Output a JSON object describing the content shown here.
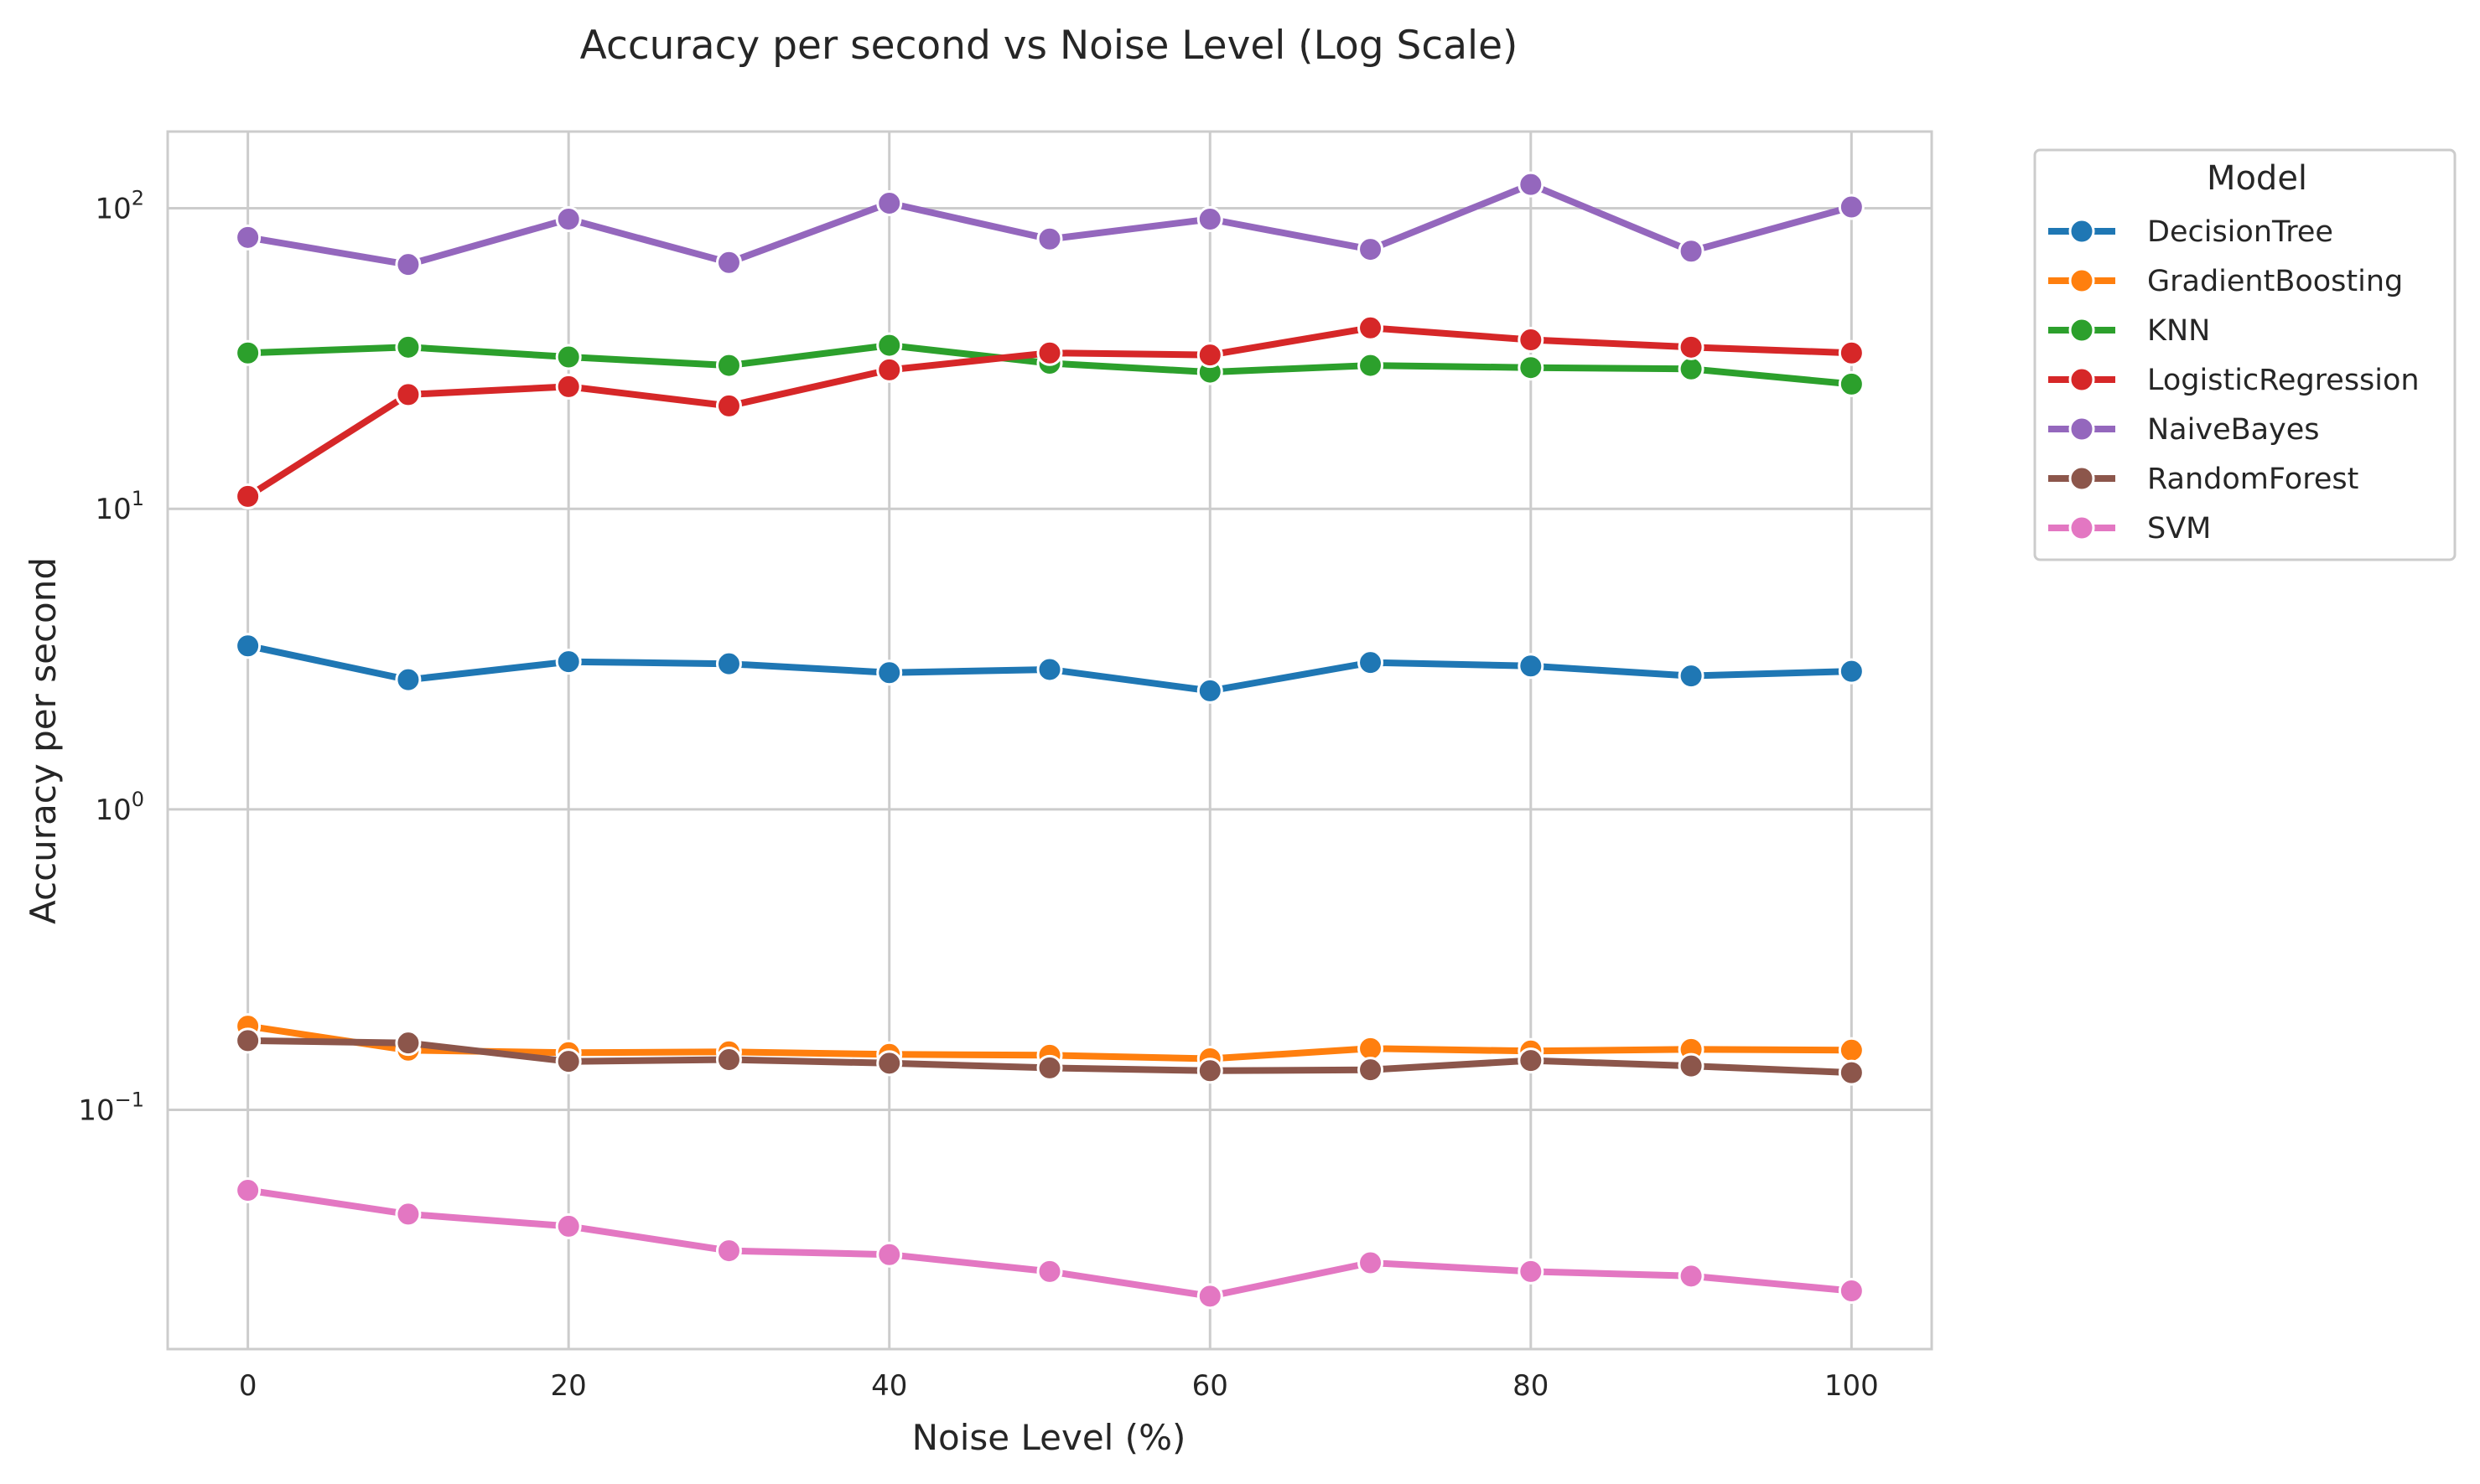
{
  "chart_data": {
    "type": "line",
    "title": "Accuracy per second vs Noise Level (Log Scale)",
    "xlabel": "Noise Level (%)",
    "ylabel": "Accuracy per second",
    "x": [
      0,
      10,
      20,
      30,
      40,
      50,
      60,
      70,
      80,
      90,
      100
    ],
    "xlim": [
      -5,
      105
    ],
    "xticks": [
      0,
      20,
      40,
      60,
      80,
      100
    ],
    "yscale": "log",
    "ylim": [
      0.016,
      180
    ],
    "yticks": [
      {
        "value": 0.1,
        "base": "10",
        "exp": "−1"
      },
      {
        "value": 1,
        "base": "10",
        "exp": "0"
      },
      {
        "value": 10,
        "base": "10",
        "exp": "1"
      },
      {
        "value": 100,
        "base": "10",
        "exp": "2"
      }
    ],
    "grid": true,
    "legend": {
      "title": "Model",
      "placement": "outside-top-right"
    },
    "series": [
      {
        "name": "DecisionTree",
        "color": "#1f77b4",
        "values": [
          3.5,
          2.7,
          3.1,
          3.05,
          2.85,
          2.92,
          2.48,
          3.08,
          3.0,
          2.78,
          2.88
        ]
      },
      {
        "name": "GradientBoosting",
        "color": "#ff7f0e",
        "values": [
          0.19,
          0.158,
          0.155,
          0.156,
          0.153,
          0.152,
          0.148,
          0.16,
          0.157,
          0.159,
          0.158
        ]
      },
      {
        "name": "KNN",
        "color": "#2ca02c",
        "values": [
          33,
          34.5,
          32,
          30,
          35,
          30.5,
          28.5,
          30,
          29.5,
          29.2,
          26
        ]
      },
      {
        "name": "LogisticRegression",
        "color": "#d62728",
        "values": [
          11,
          24,
          25.5,
          22,
          29,
          33,
          32.5,
          40,
          36.5,
          34.5,
          33
        ]
      },
      {
        "name": "NaiveBayes",
        "color": "#9467bd",
        "values": [
          80,
          65,
          92,
          66,
          104,
          79,
          92,
          73,
          120,
          72,
          101
        ]
      },
      {
        "name": "RandomForest",
        "color": "#8c564b",
        "values": [
          0.17,
          0.167,
          0.145,
          0.147,
          0.143,
          0.138,
          0.135,
          0.136,
          0.146,
          0.14,
          0.133
        ]
      },
      {
        "name": "SVM",
        "color": "#e377c2",
        "values": [
          0.054,
          0.045,
          0.041,
          0.034,
          0.033,
          0.029,
          0.024,
          0.031,
          0.029,
          0.028,
          0.025
        ]
      }
    ]
  }
}
